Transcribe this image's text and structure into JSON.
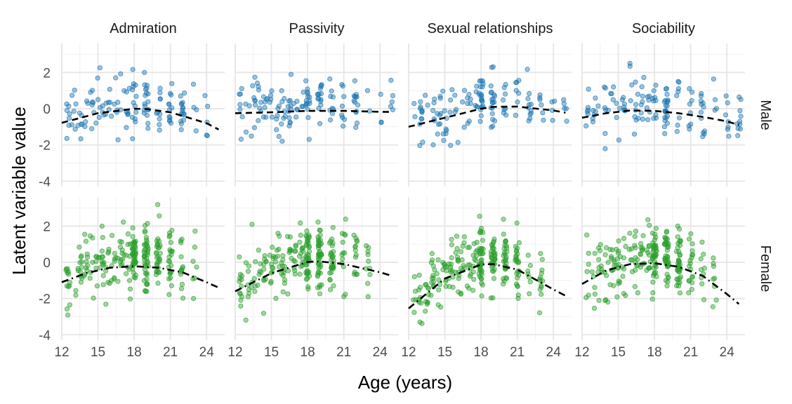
{
  "chart_data": {
    "type": "scatter",
    "layout": "faceted-grid",
    "xlabel": "Age (years)",
    "ylabel": "Latent variable value",
    "xlim": [
      12,
      25.5
    ],
    "ylim": [
      -4.3,
      3.6
    ],
    "x_ticks": [
      12,
      15,
      18,
      21,
      24
    ],
    "y_ticks": [
      -4,
      -2,
      0,
      2
    ],
    "columns": [
      "Admiration",
      "Passivity",
      "Sexual relationships",
      "Sociability"
    ],
    "rows": [
      "Male",
      "Female"
    ],
    "colors": {
      "Male": "#1f77b4",
      "Female": "#2ca02c",
      "trend": "#000000"
    },
    "trend_style": {
      "Male": "dashed",
      "Female": "dot-dash"
    },
    "trends": {
      "Male": {
        "Admiration": [
          [
            12,
            -0.78
          ],
          [
            15,
            -0.25
          ],
          [
            18,
            0.0
          ],
          [
            19,
            -0.02
          ],
          [
            21,
            -0.2
          ],
          [
            24,
            -0.8
          ],
          [
            25,
            -1.15
          ]
        ],
        "Passivity": [
          [
            12,
            -0.25
          ],
          [
            15,
            -0.2
          ],
          [
            18,
            -0.12
          ],
          [
            21,
            -0.12
          ],
          [
            24,
            -0.17
          ],
          [
            25,
            -0.18
          ]
        ],
        "Sexual relationships": [
          [
            12,
            -1.0
          ],
          [
            15,
            -0.5
          ],
          [
            18,
            0.0
          ],
          [
            19,
            0.1
          ],
          [
            21,
            0.12
          ],
          [
            24,
            -0.1
          ],
          [
            25,
            -0.22
          ]
        ],
        "Sociability": [
          [
            12,
            -0.5
          ],
          [
            14,
            -0.25
          ],
          [
            16,
            -0.1
          ],
          [
            18,
            -0.12
          ],
          [
            20,
            -0.25
          ],
          [
            22,
            -0.45
          ],
          [
            24,
            -0.7
          ],
          [
            25,
            -0.9
          ]
        ]
      },
      "Female": {
        "Admiration": [
          [
            12,
            -1.1
          ],
          [
            14,
            -0.6
          ],
          [
            16,
            -0.3
          ],
          [
            18,
            -0.22
          ],
          [
            20,
            -0.3
          ],
          [
            22,
            -0.55
          ],
          [
            24,
            -1.1
          ],
          [
            25,
            -1.4
          ]
        ],
        "Passivity": [
          [
            12,
            -1.6
          ],
          [
            15,
            -0.6
          ],
          [
            18,
            0.02
          ],
          [
            19,
            0.05
          ],
          [
            21,
            -0.1
          ],
          [
            24,
            -0.55
          ],
          [
            25,
            -0.75
          ]
        ],
        "Sexual relationships": [
          [
            12,
            -2.55
          ],
          [
            15,
            -0.9
          ],
          [
            18,
            -0.12
          ],
          [
            19,
            -0.1
          ],
          [
            21,
            -0.4
          ],
          [
            24,
            -1.5
          ],
          [
            25,
            -1.85
          ]
        ],
        "Sociability": [
          [
            12,
            -1.2
          ],
          [
            14,
            -0.45
          ],
          [
            16,
            -0.1
          ],
          [
            18,
            -0.05
          ],
          [
            20,
            -0.25
          ],
          [
            22,
            -0.75
          ],
          [
            24,
            -1.75
          ],
          [
            25,
            -2.3
          ]
        ]
      }
    },
    "point_generation": {
      "Male": {
        "n": 140,
        "ages": [
          12.5,
          13,
          13.5,
          14,
          14.5,
          15,
          15.5,
          16,
          16.5,
          17,
          17.5,
          18,
          18,
          18,
          19,
          19,
          19,
          20,
          20,
          21,
          21,
          22,
          22,
          23,
          24,
          25
        ],
        "spread": 0.8
      },
      "Female": {
        "n": 260,
        "ages": [
          12.5,
          13,
          13.5,
          14,
          14.5,
          15,
          15.5,
          16,
          16.5,
          17,
          17.5,
          18,
          18,
          18,
          18,
          19,
          19,
          19,
          19,
          20,
          20,
          20,
          21,
          21,
          22,
          23
        ],
        "spread": 0.85
      }
    }
  }
}
